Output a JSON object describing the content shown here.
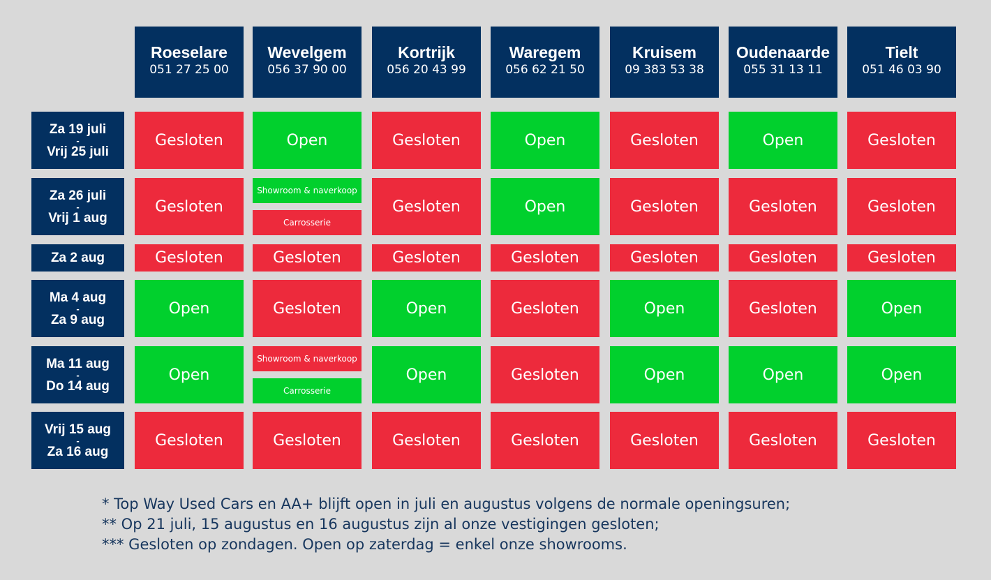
{
  "locations": [
    {
      "name": "Roeselare",
      "phone": "051 27 25 00"
    },
    {
      "name": "Wevelgem",
      "phone": "056 37 90 00"
    },
    {
      "name": "Kortrijk",
      "phone": "056 20 43 99"
    },
    {
      "name": "Waregem",
      "phone": "056 62 21 50"
    },
    {
      "name": "Kruisem",
      "phone": "09 383 53 38"
    },
    {
      "name": "Oudenaarde",
      "phone": "055 31 13 11"
    },
    {
      "name": "Tielt",
      "phone": "051 46 03 90"
    }
  ],
  "periods": [
    {
      "start": "Za 19 juli",
      "sep": "-",
      "end": "Vrij 25 juli"
    },
    {
      "start": "Za 26 juli",
      "sep": "-",
      "end": "Vrij 1 aug"
    },
    {
      "start": "Za 2 aug",
      "sep": "",
      "end": ""
    },
    {
      "start": "Ma 4 aug",
      "sep": "-",
      "end": "Za 9 aug"
    },
    {
      "start": "Ma 11 aug",
      "sep": "-",
      "end": "Do 14 aug"
    },
    {
      "start": "Vrij 15 aug",
      "sep": "-",
      "end": "Za 16 aug"
    }
  ],
  "status": {
    "r0": [
      "Gesloten",
      "Open",
      "Gesloten",
      "Open",
      "Gesloten",
      "Open",
      "Gesloten"
    ],
    "r1": [
      "Gesloten",
      "",
      "Gesloten",
      "Open",
      "Gesloten",
      "Gesloten",
      "Gesloten"
    ],
    "r2": [
      "Gesloten",
      "Gesloten",
      "Gesloten",
      "Gesloten",
      "Gesloten",
      "Gesloten",
      "Gesloten"
    ],
    "r3": [
      "Open",
      "Gesloten",
      "Open",
      "Gesloten",
      "Open",
      "Gesloten",
      "Open"
    ],
    "r4": [
      "Open",
      "",
      "Open",
      "Gesloten",
      "Open",
      "Open",
      "Open"
    ],
    "r5": [
      "Gesloten",
      "Gesloten",
      "Gesloten",
      "Gesloten",
      "Gesloten",
      "Gesloten",
      "Gesloten"
    ]
  },
  "split_cells": {
    "r1": {
      "top": "Showroom & naverkoop",
      "top_status": "Open",
      "bottom": "Carrosserie",
      "bottom_status": "Gesloten"
    },
    "r4": {
      "top": "Showroom & naverkoop",
      "top_status": "Gesloten",
      "bottom": "Carrosserie",
      "bottom_status": "Open"
    }
  },
  "colors": {
    "header_bg": "#033060",
    "open": "#01d02d",
    "closed": "#ed2a3c",
    "background": "#d9d9d9",
    "notes_text": "#17365d"
  },
  "notes": [
    "* Top Way Used Cars en AA+ blijft open in juli en augustus volgens de normale openingsuren;",
    "** Op 21 juli, 15 augustus en 16 augustus zijn al onze vestigingen gesloten;",
    "*** Gesloten op zondagen. Open op zaterdag = enkel onze showrooms."
  ]
}
